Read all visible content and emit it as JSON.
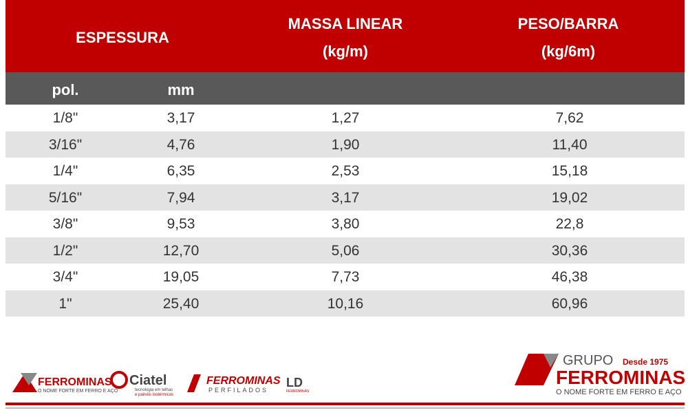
{
  "table": {
    "headers": {
      "espessura": "ESPESSURA",
      "massa": [
        "MASSA LINEAR",
        "(kg/m)"
      ],
      "peso": [
        "PESO/BARRA",
        "(kg/6m)"
      ]
    },
    "subheaders": [
      "pol.",
      "mm"
    ],
    "rows": [
      [
        "1/8\"",
        "3,17",
        "1,27",
        "7,62"
      ],
      [
        "3/16\"",
        "4,76",
        "1,90",
        "11,40"
      ],
      [
        "1/4\"",
        "6,35",
        "2,53",
        "15,18"
      ],
      [
        "5/16\"",
        "7,94",
        "3,17",
        "19,02"
      ],
      [
        "3/8\"",
        "9,53",
        "3,80",
        "22,8"
      ],
      [
        "1/2\"",
        "12,70",
        "5,06",
        "30,36"
      ],
      [
        "3/4\"",
        "19,05",
        "7,73",
        "46,38"
      ],
      [
        "1\"",
        "25,40",
        "10,16",
        "60,96"
      ]
    ]
  },
  "footer": {
    "logos": [
      {
        "name": "FERROMINAS",
        "tagline": "O NOME FORTE EM FERRO E AÇO"
      },
      {
        "name": "Ciatel",
        "tagline": [
          "tecnologia em telhas",
          "e painéis isotérmicos"
        ]
      },
      {
        "name": "FERROMINAS",
        "tagline": "PERFILADOS"
      },
      {
        "name": "LD",
        "tagline": "FERROMINAS"
      }
    ],
    "brand": {
      "group": "GRUPO",
      "name": "FERROMINAS",
      "since": "Desde 1975",
      "tagline": "O NOME FORTE EM FERRO E AÇO"
    }
  }
}
